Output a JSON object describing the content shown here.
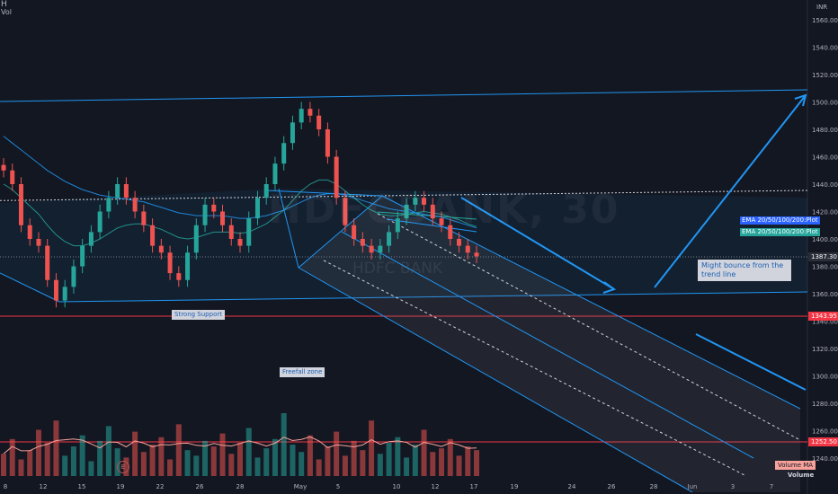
{
  "header": {
    "symbol_label": "H",
    "volume_label": "Vol",
    "currency": "INR"
  },
  "watermark": {
    "symbol": "HDFCBANK, 30",
    "name": "HDFC BANK"
  },
  "chart_data": {
    "type": "candlestick",
    "price_axis": {
      "min": 1230,
      "max": 1570,
      "ticks": [
        1560,
        1540,
        1520,
        1500,
        1480,
        1460,
        1440,
        1420,
        1400,
        1380,
        1360,
        1340,
        1320,
        1300,
        1280,
        1260,
        1240
      ],
      "tick_labels": [
        "1560.00",
        "1540.00",
        "1520.00",
        "1500.00",
        "1480.00",
        "1460.00",
        "1440.00",
        "1420.00",
        "1400.00",
        "1380.00",
        "1360.00",
        "1340.00",
        "1320.00",
        "1300.00",
        "1280.00",
        "1260.00",
        "1240.00"
      ]
    },
    "time_axis": {
      "labels": [
        "8",
        "12",
        "15",
        "19",
        "22",
        "26",
        "28",
        "May",
        "5",
        "10",
        "12",
        "17",
        "19",
        "24",
        "26",
        "28",
        "Jun",
        "3",
        "7"
      ]
    },
    "price_series": {
      "name": "HDFCBANK",
      "close": [
        1450,
        1440,
        1410,
        1400,
        1395,
        1370,
        1355,
        1365,
        1380,
        1395,
        1405,
        1420,
        1430,
        1440,
        1430,
        1420,
        1410,
        1395,
        1390,
        1375,
        1370,
        1390,
        1410,
        1425,
        1420,
        1410,
        1400,
        1395,
        1415,
        1430,
        1440,
        1455,
        1470,
        1485,
        1495,
        1490,
        1480,
        1460,
        1430,
        1410,
        1400,
        1395,
        1390,
        1395,
        1405,
        1415,
        1425,
        1430,
        1425,
        1415,
        1410,
        1400,
        1395,
        1390,
        1387.3
      ]
    },
    "ema_lines": [
      {
        "name": "EMA 20",
        "values": [
          1440,
          1436,
          1430,
          1424,
          1418,
          1410,
          1403,
          1398,
          1395,
          1395,
          1397,
          1400,
          1404,
          1408,
          1410,
          1411,
          1411,
          1409,
          1407,
          1404,
          1401,
          1400,
          1401,
          1403,
          1405,
          1405,
          1405,
          1404,
          1405,
          1408,
          1411,
          1416,
          1421,
          1428,
          1435,
          1440,
          1443,
          1443,
          1440,
          1435,
          1430,
          1425,
          1421,
          1418,
          1417,
          1417,
          1418,
          1419,
          1420,
          1419,
          1418,
          1416,
          1414,
          1411,
          1409
        ]
      },
      {
        "name": "EMA 200",
        "values": [
          1475,
          1470,
          1465,
          1460,
          1455,
          1450,
          1446,
          1442,
          1439,
          1436,
          1434,
          1432,
          1431,
          1430,
          1429,
          1428,
          1427,
          1425,
          1423,
          1421,
          1419,
          1418,
          1417,
          1417,
          1417,
          1417,
          1416,
          1415,
          1415,
          1416,
          1417,
          1419,
          1421,
          1424,
          1427,
          1430,
          1432,
          1433,
          1433,
          1432,
          1430,
          1428,
          1426,
          1424,
          1422,
          1421,
          1420,
          1419,
          1418,
          1417,
          1416,
          1414,
          1412,
          1410,
          1408
        ]
      }
    ],
    "horizontal_levels": [
      {
        "name": "Strong Support level",
        "value": 1343.95,
        "label": "1343.95",
        "color": "#f23645"
      },
      {
        "name": "Volume level",
        "value": 1252.5,
        "label": "1252.50",
        "color": "#f23645"
      },
      {
        "name": "Dotted resistance",
        "value": 1428
      }
    ],
    "current_price": {
      "value": 1387.3,
      "label": "1387.30"
    },
    "annotations": [
      {
        "text": "Strong Support"
      },
      {
        "text": "Freefall zone"
      },
      {
        "text": "Might bounce from the trend line"
      }
    ],
    "volume": {
      "label": "Volume",
      "ma_label": "Volume MA",
      "bars": [
        12,
        20,
        9,
        14,
        25,
        18,
        30,
        11,
        16,
        22,
        8,
        19,
        27,
        15,
        10,
        24,
        13,
        17,
        21,
        9,
        28,
        14,
        11,
        19,
        16,
        23,
        12,
        18,
        26,
        10,
        15,
        20,
        34,
        17,
        13,
        22,
        9,
        16,
        24,
        11,
        19,
        14,
        30,
        12,
        18,
        21,
        10,
        17,
        25,
        13,
        15,
        20,
        11,
        16,
        14
      ]
    },
    "legend": [
      {
        "text": "EMA 20/50/100/200:Plot",
        "color": "#2962ff"
      },
      {
        "text": "EMA 20/50/100/200:Plot",
        "color": "#26a69a"
      }
    ],
    "colors": {
      "up": "#26a69a",
      "down": "#ef5350",
      "channel": "#2196f3",
      "background": "#131722"
    }
  }
}
